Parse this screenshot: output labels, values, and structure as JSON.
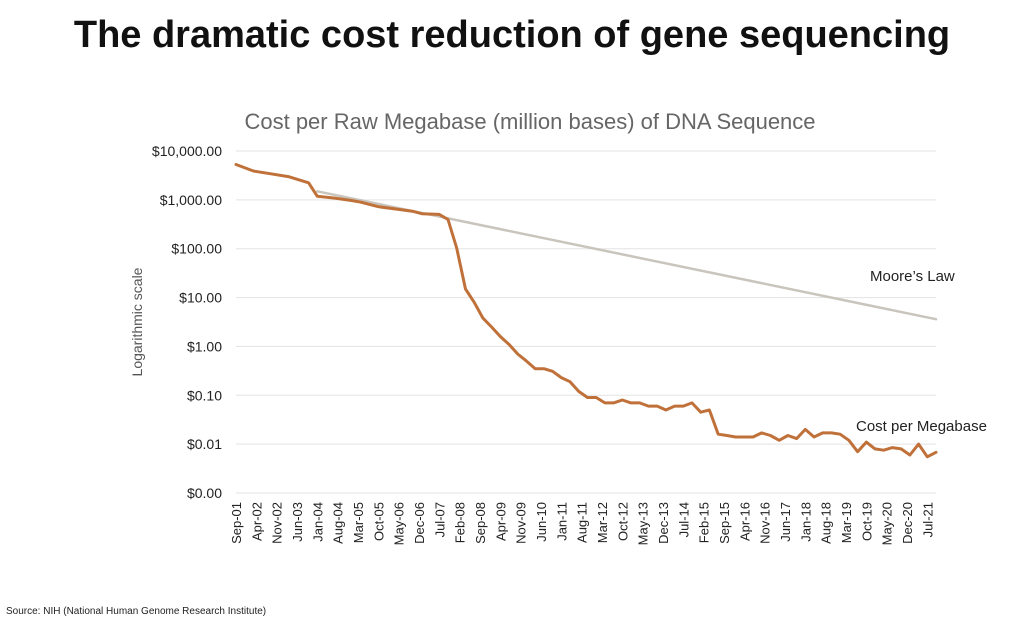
{
  "page": {
    "title": "The dramatic cost reduction of gene sequencing",
    "source": "Source: NIH (National Human Genome Research Institute)"
  },
  "colors": {
    "cost_series": "#c0713a",
    "moore_series": "#c9c5bd",
    "grid": "#e3e3e3",
    "text_dark": "#222222",
    "text_gray": "#666666"
  },
  "chart_data": {
    "type": "line",
    "title": "Cost per Raw Megabase (million bases) of DNA Sequence",
    "xlabel": "",
    "ylabel": "Logarithmic scale",
    "yscale": "log",
    "ylim": [
      0.001,
      10000
    ],
    "y_ticks": [
      {
        "value": 10000,
        "label": "$10,000.00"
      },
      {
        "value": 1000,
        "label": "$1,000.00"
      },
      {
        "value": 100,
        "label": "$100.00"
      },
      {
        "value": 10,
        "label": "$10.00"
      },
      {
        "value": 1,
        "label": "$1.00"
      },
      {
        "value": 0.1,
        "label": "$0.10"
      },
      {
        "value": 0.01,
        "label": "$0.01"
      },
      {
        "value": 0.001,
        "label": "$0.00"
      }
    ],
    "x_tick_labels": [
      "Sep-01",
      "Apr-02",
      "Nov-02",
      "Jun-03",
      "Jan-04",
      "Aug-04",
      "Mar-05",
      "Oct-05",
      "May-06",
      "Dec-06",
      "Jul-07",
      "Feb-08",
      "Sep-08",
      "Apr-09",
      "Nov-09",
      "Jun-10",
      "Jan-11",
      "Aug-11",
      "Mar-12",
      "Oct-12",
      "May-13",
      "Dec-13",
      "Jul-14",
      "Feb-15",
      "Sep-15",
      "Apr-16",
      "Nov-16",
      "Jun-17",
      "Jan-18",
      "Aug-18",
      "Mar-19",
      "Oct-19",
      "May-20",
      "Dec-20",
      "Jul-21"
    ],
    "grid": true,
    "legend": "none",
    "series": [
      {
        "name": "Cost per Megabase",
        "points": [
          [
            "Sep-01",
            5292
          ],
          [
            "Mar-02",
            3899
          ],
          [
            "Sep-02",
            3413
          ],
          [
            "Mar-03",
            2987
          ],
          [
            "Oct-03",
            2231
          ],
          [
            "Jan-04",
            1180
          ],
          [
            "Jul-04",
            1086
          ],
          [
            "Jan-05",
            966
          ],
          [
            "Apr-05",
            896
          ],
          [
            "Oct-05",
            724
          ],
          [
            "Apr-06",
            651
          ],
          [
            "Oct-06",
            581
          ],
          [
            "Jan-07",
            522
          ],
          [
            "Jul-07",
            505
          ],
          [
            "Oct-07",
            397
          ],
          [
            "Jan-08",
            103
          ],
          [
            "Apr-08",
            15
          ],
          [
            "Jul-08",
            8
          ],
          [
            "Oct-08",
            3.8
          ],
          [
            "Jan-09",
            2.5
          ],
          [
            "Apr-09",
            1.6
          ],
          [
            "Jul-09",
            1.1
          ],
          [
            "Oct-09",
            0.7
          ],
          [
            "Jan-10",
            0.5
          ],
          [
            "Apr-10",
            0.35
          ],
          [
            "Jul-10",
            0.35
          ],
          [
            "Oct-10",
            0.31
          ],
          [
            "Jan-11",
            0.23
          ],
          [
            "Apr-11",
            0.19
          ],
          [
            "Jul-11",
            0.12
          ],
          [
            "Oct-11",
            0.09
          ],
          [
            "Jan-12",
            0.09
          ],
          [
            "Apr-12",
            0.07
          ],
          [
            "Jul-12",
            0.07
          ],
          [
            "Oct-12",
            0.08
          ],
          [
            "Jan-13",
            0.07
          ],
          [
            "Apr-13",
            0.07
          ],
          [
            "Jul-13",
            0.06
          ],
          [
            "Oct-13",
            0.06
          ],
          [
            "Jan-14",
            0.05
          ],
          [
            "Apr-14",
            0.06
          ],
          [
            "Jul-14",
            0.06
          ],
          [
            "Oct-14",
            0.07
          ],
          [
            "Jan-15",
            0.045
          ],
          [
            "Apr-15",
            0.05
          ],
          [
            "Jul-15",
            0.016
          ],
          [
            "Oct-15",
            0.015
          ],
          [
            "Jan-16",
            0.014
          ],
          [
            "Apr-16",
            0.014
          ],
          [
            "Jul-16",
            0.014
          ],
          [
            "Oct-16",
            0.017
          ],
          [
            "Jan-17",
            0.015
          ],
          [
            "Apr-17",
            0.012
          ],
          [
            "Jul-17",
            0.015
          ],
          [
            "Oct-17",
            0.013
          ],
          [
            "Jan-18",
            0.02
          ],
          [
            "Apr-18",
            0.014
          ],
          [
            "Jul-18",
            0.017
          ],
          [
            "Oct-18",
            0.017
          ],
          [
            "Jan-19",
            0.016
          ],
          [
            "Apr-19",
            0.012
          ],
          [
            "Jul-19",
            0.007
          ],
          [
            "Oct-19",
            0.011
          ],
          [
            "Jan-20",
            0.008
          ],
          [
            "Apr-20",
            0.0075
          ],
          [
            "Jul-20",
            0.0085
          ],
          [
            "Oct-20",
            0.008
          ],
          [
            "Jan-21",
            0.006
          ],
          [
            "Apr-21",
            0.01
          ],
          [
            "Jul-21",
            0.0055
          ],
          [
            "Oct-21",
            0.0068
          ]
        ]
      },
      {
        "name": "Moore’s Law",
        "points": [
          [
            "Jan-04",
            1500
          ],
          [
            "Oct-21",
            3.6
          ]
        ]
      }
    ]
  }
}
